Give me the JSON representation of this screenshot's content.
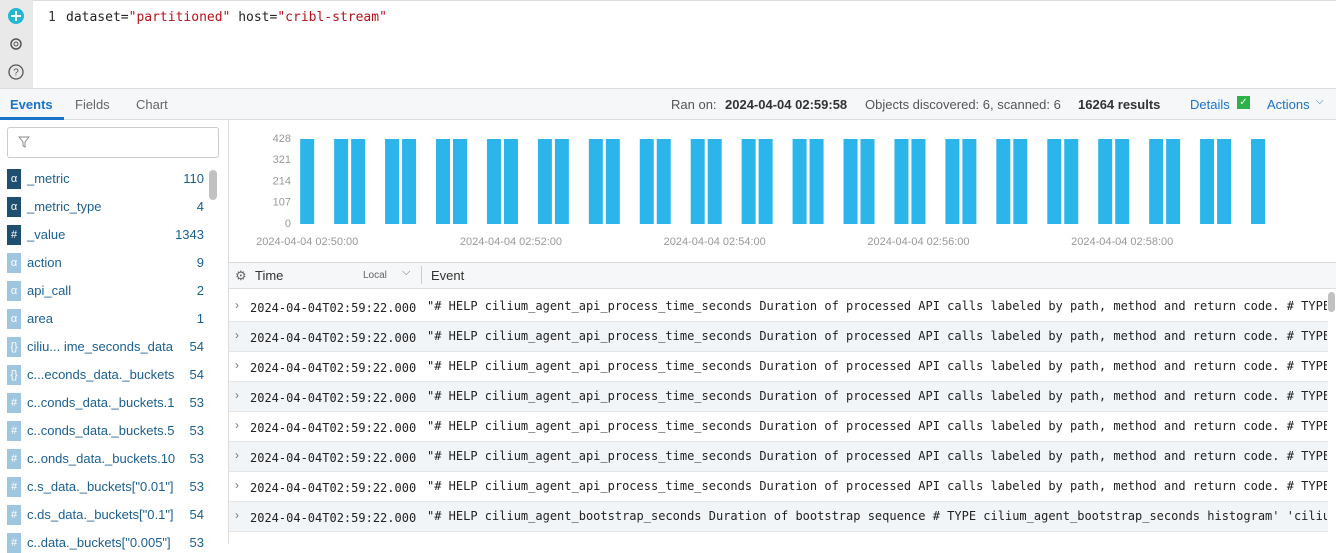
{
  "editor": {
    "line_number": "1",
    "query_tokens": [
      "dataset=",
      "\"partitioned\"",
      " host=",
      "\"cribl-stream\""
    ]
  },
  "tabs": [
    "Events",
    "Fields",
    "Chart"
  ],
  "status": {
    "ran_on_label": "Ran on:",
    "ran_on": "2024-04-04 02:59:58",
    "objects": "Objects discovered: 6, scanned: 6",
    "results": "16264 results",
    "details": "Details",
    "actions": "Actions"
  },
  "fields": [
    {
      "type": "α",
      "name": "_metric",
      "count": 110,
      "selected": true
    },
    {
      "type": "α",
      "name": "_metric_type",
      "count": 4,
      "selected": true
    },
    {
      "type": "#",
      "name": "_value",
      "count": 1343,
      "selected": true
    },
    {
      "type": "α",
      "name": "action",
      "count": 9,
      "selected": false
    },
    {
      "type": "α",
      "name": "api_call",
      "count": 2,
      "selected": false
    },
    {
      "type": "α",
      "name": "area",
      "count": 1,
      "selected": false
    },
    {
      "type": "{}",
      "name": "ciliu... ime_seconds_data",
      "count": 54,
      "selected": false
    },
    {
      "type": "{}",
      "name": "c...econds_data._buckets",
      "count": 54,
      "selected": false
    },
    {
      "type": "#",
      "name": "c..conds_data._buckets.1",
      "count": 53,
      "selected": false
    },
    {
      "type": "#",
      "name": "c..conds_data._buckets.5",
      "count": 53,
      "selected": false
    },
    {
      "type": "#",
      "name": "c..onds_data._buckets.10",
      "count": 53,
      "selected": false
    },
    {
      "type": "#",
      "name": "c.s_data._buckets[\"0.01\"]",
      "count": 53,
      "selected": false
    },
    {
      "type": "#",
      "name": "c.ds_data._buckets[\"0.1\"]",
      "count": 54,
      "selected": false
    },
    {
      "type": "#",
      "name": "c..data._buckets[\"0.005\"]",
      "count": 53,
      "selected": false
    }
  ],
  "chart_data": {
    "type": "bar",
    "color": "#2bb5ea",
    "x": [
      "2024-04-04 02:50:00",
      "2024-04-04 02:50:20",
      "2024-04-04 02:50:30",
      "2024-04-04 02:50:50",
      "2024-04-04 02:51:00",
      "2024-04-04 02:51:20",
      "2024-04-04 02:51:30",
      "2024-04-04 02:51:50",
      "2024-04-04 02:52:00",
      "2024-04-04 02:52:20",
      "2024-04-04 02:52:30",
      "2024-04-04 02:52:50",
      "2024-04-04 02:53:00",
      "2024-04-04 02:53:20",
      "2024-04-04 02:53:30",
      "2024-04-04 02:53:50",
      "2024-04-04 02:54:00",
      "2024-04-04 02:54:20",
      "2024-04-04 02:54:30",
      "2024-04-04 02:54:50",
      "2024-04-04 02:55:00",
      "2024-04-04 02:55:20",
      "2024-04-04 02:55:30",
      "2024-04-04 02:55:50",
      "2024-04-04 02:56:00",
      "2024-04-04 02:56:20",
      "2024-04-04 02:56:30",
      "2024-04-04 02:56:50",
      "2024-04-04 02:57:00",
      "2024-04-04 02:57:20",
      "2024-04-04 02:57:30",
      "2024-04-04 02:57:50",
      "2024-04-04 02:58:00",
      "2024-04-04 02:58:20",
      "2024-04-04 02:58:30",
      "2024-04-04 02:58:50",
      "2024-04-04 02:59:00",
      "2024-04-04 02:59:20"
    ],
    "values": [
      428,
      428,
      428,
      428,
      428,
      428,
      428,
      428,
      428,
      428,
      428,
      428,
      428,
      428,
      428,
      428,
      428,
      428,
      428,
      428,
      428,
      428,
      428,
      428,
      428,
      428,
      428,
      428,
      428,
      428,
      428,
      428,
      428,
      428,
      428,
      428,
      428,
      428
    ],
    "xlim": [
      "2024-04-04 02:49:54",
      "2024-04-04 02:59:30"
    ],
    "xticks": [
      "2024-04-04 02:50:00",
      "2024-04-04 02:52:00",
      "2024-04-04 02:54:00",
      "2024-04-04 02:56:00",
      "2024-04-04 02:58:00"
    ],
    "ylim": [
      0,
      428
    ],
    "yticks": [
      0,
      107,
      214,
      321,
      428
    ]
  },
  "table": {
    "header": {
      "time": "Time",
      "timezone": "Local",
      "event": "Event"
    },
    "rows": [
      [
        "2024-04-04T02:59:22.000",
        "\"# HELP cilium_agent_api_process_time_seconds Duration of processed API calls labeled by path, method and return code. # TYPE"
      ],
      [
        "2024-04-04T02:59:22.000",
        "\"# HELP cilium_agent_api_process_time_seconds Duration of processed API calls labeled by path, method and return code. # TYPE"
      ],
      [
        "2024-04-04T02:59:22.000",
        "\"# HELP cilium_agent_api_process_time_seconds Duration of processed API calls labeled by path, method and return code. # TYPE"
      ],
      [
        "2024-04-04T02:59:22.000",
        "\"# HELP cilium_agent_api_process_time_seconds Duration of processed API calls labeled by path, method and return code. # TYPE"
      ],
      [
        "2024-04-04T02:59:22.000",
        "\"# HELP cilium_agent_api_process_time_seconds Duration of processed API calls labeled by path, method and return code. # TYPE"
      ],
      [
        "2024-04-04T02:59:22.000",
        "\"# HELP cilium_agent_api_process_time_seconds Duration of processed API calls labeled by path, method and return code. # TYPE"
      ],
      [
        "2024-04-04T02:59:22.000",
        "\"# HELP cilium_agent_api_process_time_seconds Duration of processed API calls labeled by path, method and return code. # TYPE"
      ],
      [
        "2024-04-04T02:59:22.000",
        "\"# HELP cilium_agent_bootstrap_seconds Duration of bootstrap sequence # TYPE cilium_agent_bootstrap_seconds histogram' 'ciliu"
      ]
    ]
  }
}
